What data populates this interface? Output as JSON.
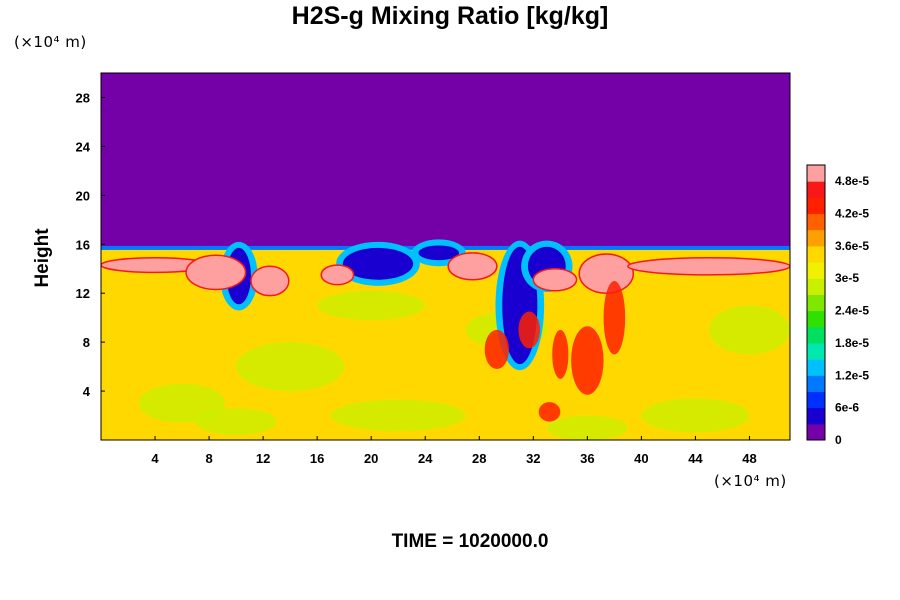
{
  "chart_data": {
    "type": "heatmap",
    "title": "H2S-g Mixing Ratio [kg/kg]",
    "ylabel": "Height",
    "xlabel": "",
    "x_unit": "(×10⁴ m)",
    "y_unit": "(×10⁴ m)",
    "xlim": [
      0,
      51
    ],
    "ylim": [
      0,
      30
    ],
    "x_ticks": [
      "4",
      "8",
      "12",
      "16",
      "20",
      "24",
      "28",
      "32",
      "36",
      "40",
      "44",
      "48"
    ],
    "y_ticks": [
      "4",
      "8",
      "12",
      "16",
      "20",
      "24",
      "28"
    ],
    "grid": false,
    "colorbar": {
      "labels": [
        "0",
        "6e-6",
        "1.2e-5",
        "1.8e-5",
        "2.4e-5",
        "3e-5",
        "3.6e-5",
        "4.2e-5",
        "4.8e-5"
      ],
      "min": 0,
      "max": 5.4e-05,
      "colors": [
        "#7400a8",
        "#1a00d0",
        "#0030ff",
        "#0078ff",
        "#00c0ff",
        "#00e8b0",
        "#00e060",
        "#30e000",
        "#80e800",
        "#c8f000",
        "#f0f000",
        "#ffd800",
        "#ffa000",
        "#ff6000",
        "#ff2000",
        "#f81818",
        "#ffa0a0"
      ]
    },
    "regions": {
      "upper_layer_value": 0,
      "lower_layer_value": 3.6e-05,
      "interface_height": 15.7
    }
  },
  "footer": {
    "time_label": "TIME = 1020000.0"
  }
}
